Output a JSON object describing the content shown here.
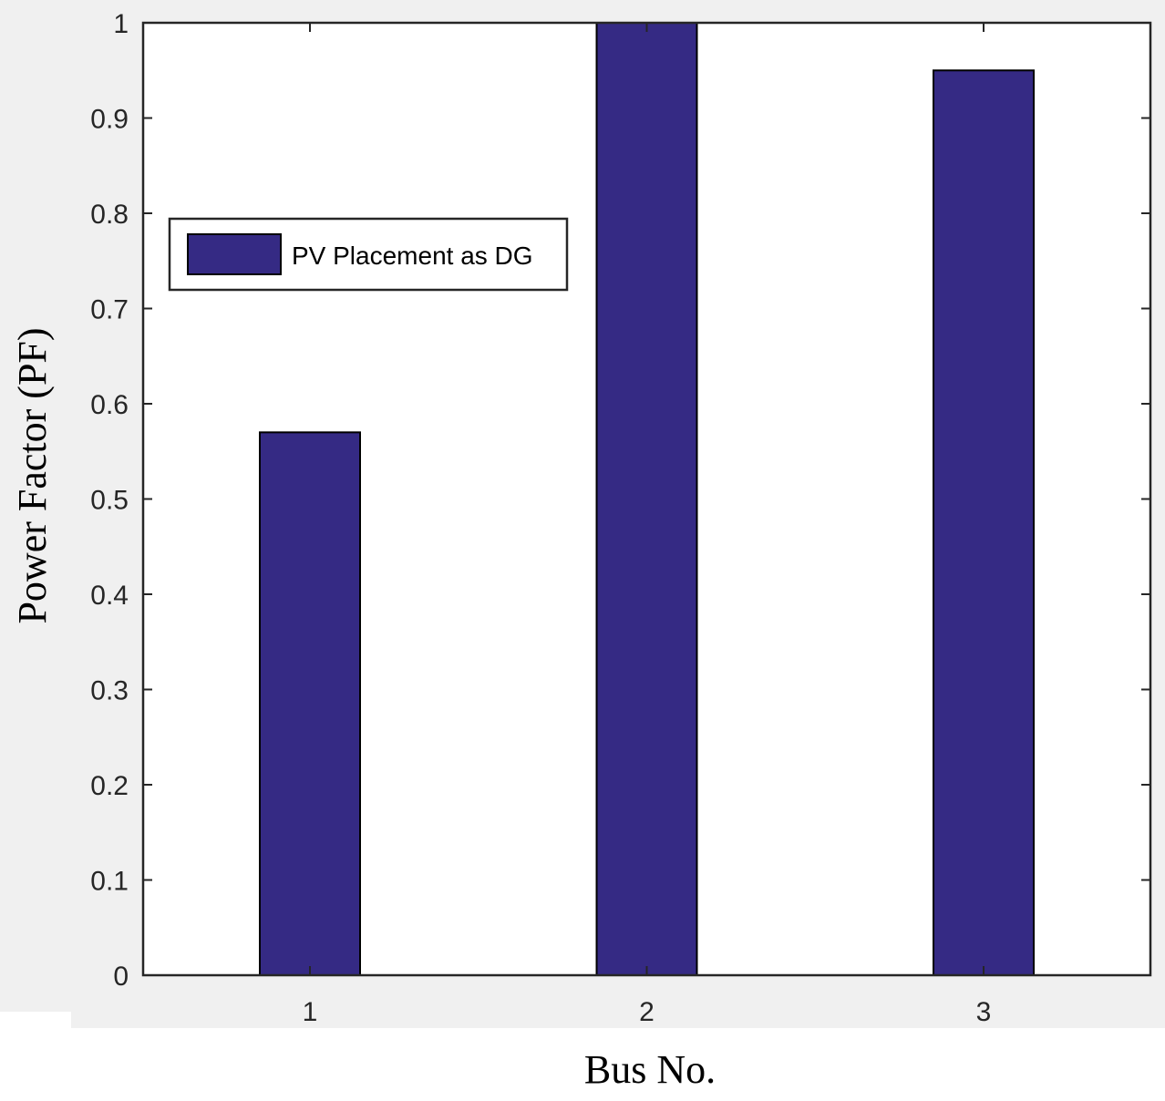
{
  "chart_data": {
    "type": "bar",
    "categories": [
      "1",
      "2",
      "3"
    ],
    "series": [
      {
        "name": "PV Placement as DG",
        "values": [
          0.57,
          1.0,
          0.95
        ],
        "color": "#352A84"
      }
    ],
    "xlabel": "Bus No.",
    "ylabel": "Power Factor (PF)",
    "ylim": [
      0,
      1
    ],
    "yticks": [
      0,
      0.1,
      0.2,
      0.3,
      0.4,
      0.5,
      0.6,
      0.7,
      0.8,
      0.9,
      1
    ],
    "ytick_labels": [
      "0",
      "0.1",
      "0.2",
      "0.3",
      "0.4",
      "0.5",
      "0.6",
      "0.7",
      "0.8",
      "0.9",
      "1"
    ],
    "grid": false,
    "legend_position": "upper-left"
  }
}
